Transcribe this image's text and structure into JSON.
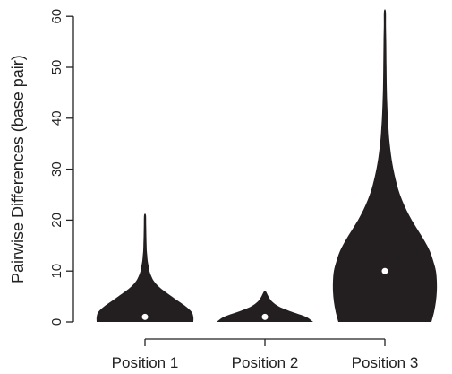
{
  "chart_data": {
    "type": "violin",
    "title": "",
    "xlabel": "",
    "ylabel": "Pairwise Differences (base pair)",
    "ylim": [
      -3,
      62
    ],
    "yticks": [
      0,
      10,
      20,
      30,
      40,
      50,
      60
    ],
    "categories": [
      "Position 1",
      "Position 2",
      "Position 3"
    ],
    "series": [
      {
        "category": "Position 1",
        "median": 1,
        "max": 21,
        "density_profile": [
          [
            0,
            54
          ],
          [
            1,
            54
          ],
          [
            2,
            52
          ],
          [
            3,
            46
          ],
          [
            4,
            38
          ],
          [
            5,
            30
          ],
          [
            6,
            22
          ],
          [
            7,
            15
          ],
          [
            8,
            10
          ],
          [
            9,
            7
          ],
          [
            10,
            5
          ],
          [
            11,
            4
          ],
          [
            12,
            3
          ],
          [
            13,
            2.5
          ],
          [
            14,
            2
          ],
          [
            15,
            1.8
          ],
          [
            17,
            1.5
          ],
          [
            19,
            1.3
          ],
          [
            21,
            1
          ]
        ]
      },
      {
        "category": "Position 2",
        "median": 1,
        "max": 6,
        "density_profile": [
          [
            0,
            54
          ],
          [
            1,
            46
          ],
          [
            2,
            30
          ],
          [
            3,
            16
          ],
          [
            4,
            8
          ],
          [
            5,
            4
          ],
          [
            6,
            1
          ]
        ]
      },
      {
        "category": "Position 3",
        "median": 10,
        "max": 61,
        "density_profile": [
          [
            0,
            52
          ],
          [
            2,
            55
          ],
          [
            4,
            57
          ],
          [
            6,
            58
          ],
          [
            8,
            58
          ],
          [
            10,
            57
          ],
          [
            12,
            54
          ],
          [
            14,
            50
          ],
          [
            16,
            44
          ],
          [
            18,
            37
          ],
          [
            20,
            30
          ],
          [
            22,
            24
          ],
          [
            24,
            19
          ],
          [
            26,
            15
          ],
          [
            28,
            12
          ],
          [
            30,
            9.5
          ],
          [
            32,
            7.5
          ],
          [
            34,
            6
          ],
          [
            36,
            4.8
          ],
          [
            38,
            4
          ],
          [
            40,
            3.3
          ],
          [
            43,
            2.6
          ],
          [
            46,
            2.1
          ],
          [
            50,
            1.8
          ],
          [
            55,
            1.5
          ],
          [
            58,
            1.2
          ],
          [
            61,
            1
          ]
        ]
      }
    ]
  }
}
